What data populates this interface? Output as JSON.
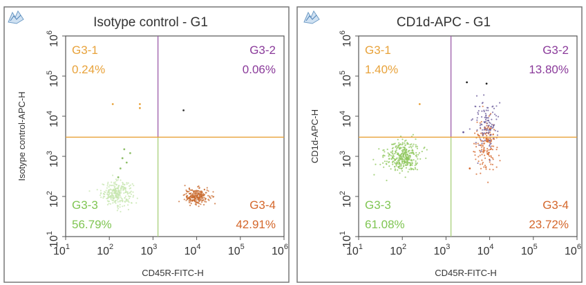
{
  "chart_data": [
    {
      "type": "scatter",
      "title": "Isotype control - G1",
      "xlabel": "CD45R-FITC-H",
      "ylabel": "Isotype control-APC-H",
      "xscale": "log",
      "yscale": "log",
      "xlim": [
        10,
        1000000
      ],
      "ylim": [
        10,
        1000000
      ],
      "x_ticks": [
        {
          "base": "10",
          "exp": "1"
        },
        {
          "base": "10",
          "exp": "2"
        },
        {
          "base": "10",
          "exp": "3"
        },
        {
          "base": "10",
          "exp": "4"
        },
        {
          "base": "10",
          "exp": "5"
        },
        {
          "base": "10",
          "exp": "6"
        }
      ],
      "y_ticks": [
        {
          "base": "10",
          "exp": "1"
        },
        {
          "base": "10",
          "exp": "2"
        },
        {
          "base": "10",
          "exp": "3"
        },
        {
          "base": "10",
          "exp": "4"
        },
        {
          "base": "10",
          "exp": "5"
        },
        {
          "base": "10",
          "exp": "6"
        }
      ],
      "gates": {
        "x": 1300,
        "y": 3000
      },
      "quadrants": [
        {
          "name": "G3-1",
          "value": "0.24%",
          "position": "top-left",
          "color": "#e8a23a"
        },
        {
          "name": "G3-2",
          "value": "0.06%",
          "position": "top-right",
          "color": "#8a3a9a"
        },
        {
          "name": "G3-3",
          "value": "56.79%",
          "position": "bottom-left",
          "color": "#7fc552"
        },
        {
          "name": "G3-4",
          "value": "42.91%",
          "position": "bottom-right",
          "color": "#d4662a"
        }
      ],
      "clusters": [
        {
          "center": [
            150,
            120
          ],
          "spread": [
            0.18,
            0.15
          ],
          "color": "#c5e6ad",
          "count": 260
        },
        {
          "center": [
            10000,
            100
          ],
          "spread": [
            0.14,
            0.1
          ],
          "color": "#c86a2e",
          "count": 230
        }
      ],
      "outliers": [
        {
          "x": 120,
          "y": 20000,
          "color": "#e8a23a"
        },
        {
          "x": 500,
          "y": 20000,
          "color": "#e8a23a"
        },
        {
          "x": 500,
          "y": 16000,
          "color": "#e8a23a"
        },
        {
          "x": 5000,
          "y": 14000,
          "color": "#333333"
        },
        {
          "x": 200,
          "y": 900,
          "color": "#8fbf6a"
        },
        {
          "x": 180,
          "y": 500,
          "color": "#8fbf6a"
        },
        {
          "x": 250,
          "y": 700,
          "color": "#8fbf6a"
        },
        {
          "x": 160,
          "y": 300,
          "color": "#8fbf6a"
        },
        {
          "x": 220,
          "y": 1500,
          "color": "#8fbf6a"
        },
        {
          "x": 300,
          "y": 1200,
          "color": "#8fbf6a"
        }
      ]
    },
    {
      "type": "scatter",
      "title": "CD1d-APC - G1",
      "xlabel": "CD45R-FITC-H",
      "ylabel": "CD1d-APC-H",
      "xscale": "log",
      "yscale": "log",
      "xlim": [
        10,
        1000000
      ],
      "ylim": [
        10,
        1000000
      ],
      "x_ticks": [
        {
          "base": "10",
          "exp": "1"
        },
        {
          "base": "10",
          "exp": "2"
        },
        {
          "base": "10",
          "exp": "3"
        },
        {
          "base": "10",
          "exp": "4"
        },
        {
          "base": "10",
          "exp": "5"
        },
        {
          "base": "10",
          "exp": "6"
        }
      ],
      "y_ticks": [
        {
          "base": "10",
          "exp": "1"
        },
        {
          "base": "10",
          "exp": "2"
        },
        {
          "base": "10",
          "exp": "3"
        },
        {
          "base": "10",
          "exp": "4"
        },
        {
          "base": "10",
          "exp": "5"
        },
        {
          "base": "10",
          "exp": "6"
        }
      ],
      "gates": {
        "x": 1300,
        "y": 3000
      },
      "quadrants": [
        {
          "name": "G3-1",
          "value": "1.40%",
          "position": "top-left",
          "color": "#e8a23a"
        },
        {
          "name": "G3-2",
          "value": "13.80%",
          "position": "top-right",
          "color": "#8a3a9a"
        },
        {
          "name": "G3-3",
          "value": "61.08%",
          "position": "bottom-left",
          "color": "#7fc552"
        },
        {
          "name": "G3-4",
          "value": "23.72%",
          "position": "bottom-right",
          "color": "#d4662a"
        }
      ],
      "clusters": [
        {
          "center": [
            100,
            1000
          ],
          "spread": [
            0.2,
            0.2
          ],
          "color": "#8cc65a",
          "count": 340
        },
        {
          "center": [
            8000,
            2000
          ],
          "spread": [
            0.13,
            0.3
          ],
          "color": "#d4662a",
          "count": 150
        },
        {
          "center": [
            8000,
            6000
          ],
          "spread": [
            0.15,
            0.3
          ],
          "color": "#6a5a9a",
          "count": 110
        }
      ],
      "outliers": [
        {
          "x": 3000,
          "y": 70000,
          "color": "#222222"
        },
        {
          "x": 8500,
          "y": 65000,
          "color": "#222222"
        },
        {
          "x": 250,
          "y": 20000,
          "color": "#e8a23a"
        },
        {
          "x": 3500,
          "y": 500,
          "color": "#d4662a"
        },
        {
          "x": 2500,
          "y": 4000,
          "color": "#6a5a9a"
        }
      ]
    }
  ]
}
